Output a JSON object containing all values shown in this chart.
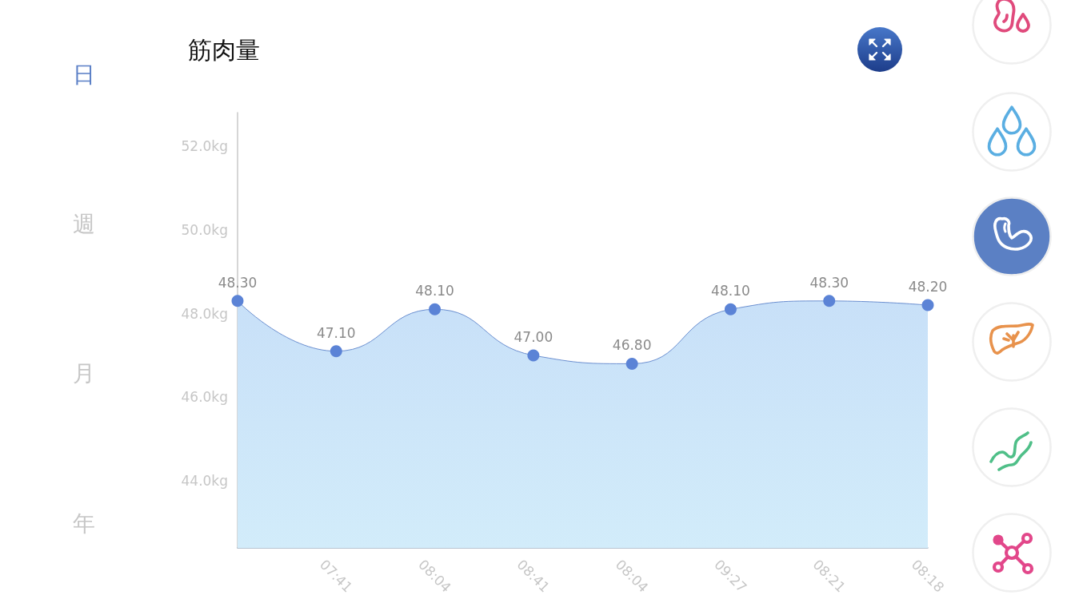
{
  "chart_data": {
    "type": "area",
    "title": "筋肉量",
    "categories": [
      null,
      "07:41",
      "08:04",
      "08:41",
      "08:04",
      "09:27",
      "08:21",
      "08:18"
    ],
    "values": [
      48.3,
      47.1,
      48.1,
      47.0,
      46.8,
      48.1,
      48.3,
      48.2
    ],
    "value_labels": [
      "48.30",
      "47.10",
      "48.10",
      "47.00",
      "46.80",
      "48.10",
      "48.30",
      "48.20"
    ],
    "color": "#5b83d6",
    "ylim": [
      42.4,
      52.8
    ],
    "yticks": [
      {
        "value": 44,
        "label": "44.0kg"
      },
      {
        "value": 46,
        "label": "46.0kg"
      },
      {
        "value": 48,
        "label": "48.0kg"
      },
      {
        "value": 50,
        "label": "50.0kg"
      },
      {
        "value": 52,
        "label": "52.0kg"
      }
    ],
    "grid": false,
    "marker": "circle",
    "annotations": [
      "日",
      "週",
      "月",
      "年"
    ]
  }
}
